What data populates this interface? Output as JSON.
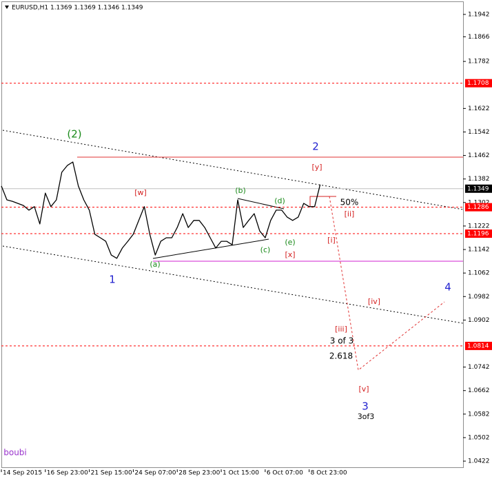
{
  "chart_data": {
    "type": "line",
    "title": "EURUSD,H1  1.1369 1.1369 1.1346 1.1349",
    "categories": [
      "14 Sep 2015",
      null,
      null,
      null,
      null,
      null,
      null,
      null,
      "16 Sep 23:00",
      null,
      null,
      null,
      null,
      null,
      null,
      null,
      "21 Sep 15:00",
      null,
      null,
      null,
      null,
      null,
      null,
      null,
      "24 Sep 07:00",
      null,
      null,
      null,
      null,
      null,
      null,
      null,
      "28 Sep 23:00",
      null,
      null,
      null,
      null,
      null,
      null,
      null,
      "1 Oct 15:00",
      null,
      null,
      null,
      null,
      null,
      null,
      null,
      "6 Oct 07:00",
      null,
      null,
      null,
      null,
      null,
      null,
      null,
      "8 Oct 23:00",
      null,
      null,
      null,
      null,
      null,
      null,
      null,
      null,
      null,
      null,
      null,
      null,
      null,
      null,
      null,
      null,
      null,
      null,
      null,
      null,
      null,
      null,
      null,
      null,
      null,
      null,
      null
    ],
    "values": [
      1.1358,
      1.1311,
      1.1306,
      1.1299,
      1.1292,
      1.1276,
      1.1288,
      1.1229,
      1.1334,
      1.1288,
      1.1311,
      1.1405,
      1.1428,
      1.144,
      1.1358,
      1.1311,
      1.1276,
      1.1194,
      1.1182,
      1.117,
      1.1123,
      1.1112,
      1.1147,
      1.117,
      1.1194,
      1.1241,
      1.1288,
      1.1194,
      1.1123,
      1.117,
      1.1182,
      1.1182,
      1.1217,
      1.1264,
      1.1217,
      1.1241,
      1.1241,
      1.1217,
      1.1182,
      1.1147,
      1.117,
      1.117,
      1.1158,
      1.1311,
      1.1217,
      1.1241,
      1.1264,
      1.1205,
      1.1182,
      1.1241,
      1.1276,
      1.1276,
      1.1252,
      1.1241,
      1.1252,
      1.1299,
      1.1288,
      1.1288,
      1.1363,
      null,
      null,
      null,
      null,
      null,
      null,
      null,
      null,
      null,
      null,
      null,
      null,
      null,
      null,
      null,
      null,
      null,
      null,
      null,
      null,
      null,
      null,
      null,
      null,
      null
    ],
    "color": "#000000",
    "ylim": [
      1.0394,
      1.1984
    ],
    "yticks": [
      1.0422,
      1.0502,
      1.0582,
      1.0662,
      1.0742,
      1.0902,
      1.0982,
      1.1062,
      1.1142,
      1.1222,
      1.1302,
      1.1382,
      1.1462,
      1.1542,
      1.1622,
      1.1782,
      1.1866,
      1.1942
    ],
    "levels": [
      1.1708,
      1.1286,
      1.1196,
      1.0814
    ],
    "level_color": "#ff0000",
    "current_price": 1.1349,
    "annotations": [
      {
        "text": "(2)",
        "color": "#1a8a1a"
      },
      {
        "text": "2",
        "color": "#1f1fcf"
      },
      {
        "text": "[y]",
        "color": "#d42020"
      },
      {
        "text": "[w]",
        "color": "#d42020"
      },
      {
        "text": "(b)",
        "color": "#1a8a1a"
      },
      {
        "text": "(d)",
        "color": "#1a8a1a"
      },
      {
        "text": "50%",
        "color": "#000000"
      },
      {
        "text": "[ii]",
        "color": "#d42020"
      },
      {
        "text": "[i]",
        "color": "#d42020"
      },
      {
        "text": "(e)",
        "color": "#1a8a1a"
      },
      {
        "text": "(c)",
        "color": "#1a8a1a"
      },
      {
        "text": "[x]",
        "color": "#d42020"
      },
      {
        "text": "(a)",
        "color": "#1a8a1a"
      },
      {
        "text": "1",
        "color": "#1f1fcf"
      },
      {
        "text": "4",
        "color": "#1f1fcf"
      },
      {
        "text": "[iv]",
        "color": "#d42020"
      },
      {
        "text": "[iii]",
        "color": "#d42020"
      },
      {
        "text": "3 of 3",
        "color": "#000000"
      },
      {
        "text": "2.618",
        "color": "#000000"
      },
      {
        "text": "[v]",
        "color": "#d42020"
      },
      {
        "text": "3",
        "color": "#1f1fcf"
      },
      {
        "text": "3of3",
        "color": "#000000"
      },
      {
        "text": "boubi",
        "color": "#9933cc"
      }
    ]
  }
}
